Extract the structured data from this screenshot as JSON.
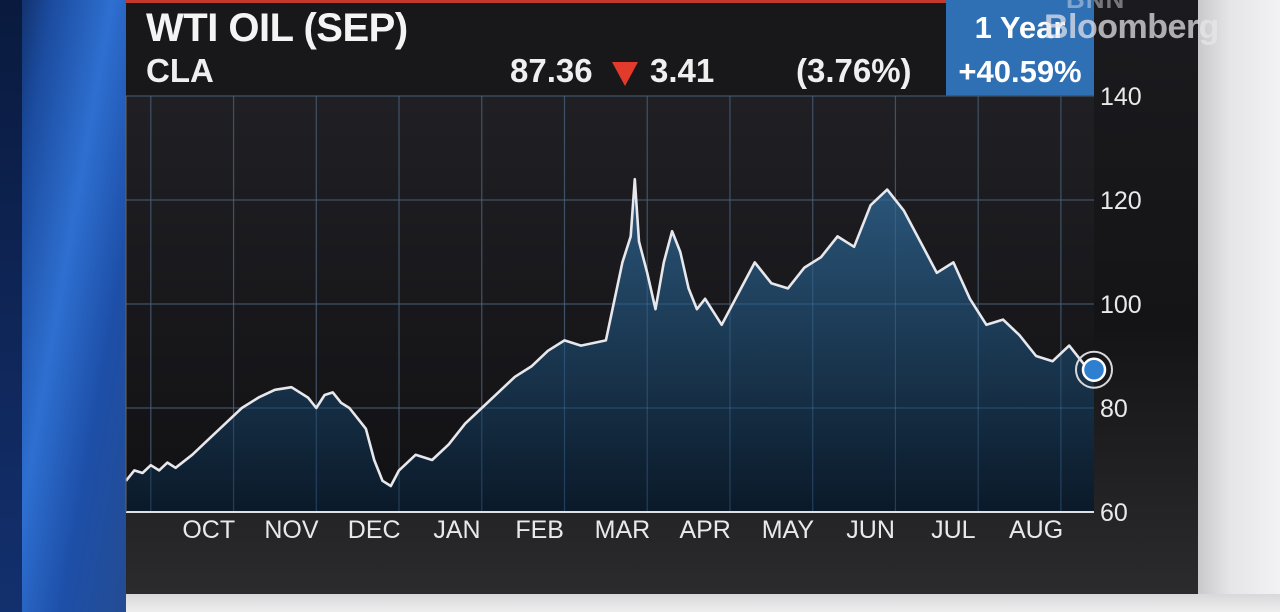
{
  "header": {
    "title": "WTI OIL (SEP)",
    "ticker": "CLA",
    "price": "87.36",
    "change": "3.41",
    "change_pct": "(3.76%)",
    "direction_icon": "down-triangle-icon",
    "period_label": "1 Year",
    "period_change": "+40.59%",
    "brand": "Bloomberg",
    "brand_prefix": "BNN"
  },
  "colors": {
    "line": "#e8e8ec",
    "area_top": "#2c5a80",
    "area_bottom": "#0a1a2a",
    "down": "#e23a2b",
    "period_box": "#2f6fb4",
    "marker": "#2f7fd0"
  },
  "chart_data": {
    "type": "area",
    "title": "WTI OIL (SEP)",
    "xlabel": "",
    "ylabel": "",
    "ylim": [
      60,
      140
    ],
    "yticks": [
      60,
      80,
      100,
      120,
      140
    ],
    "y_axis_position": "right",
    "grid": true,
    "legend": "none",
    "x_tick_labels": [
      "OCT",
      "NOV",
      "DEC",
      "JAN",
      "FEB",
      "MAR",
      "APR",
      "MAY",
      "JUN",
      "JUL",
      "AUG"
    ],
    "x_tick_months": [
      1,
      2,
      3,
      4,
      5,
      6,
      7,
      8,
      9,
      10,
      11
    ],
    "x_range_months": [
      0,
      11.7
    ],
    "last_value": 87.36,
    "series": [
      {
        "x": [
          0,
          0.1,
          0.2,
          0.3,
          0.4,
          0.5,
          0.6,
          0.8,
          1.0,
          1.2,
          1.4,
          1.6,
          1.8,
          2.0,
          2.2,
          2.3,
          2.4,
          2.5,
          2.6,
          2.7,
          2.8,
          2.9,
          3.0,
          3.1,
          3.2,
          3.3,
          3.5,
          3.7,
          3.9,
          4.1,
          4.3,
          4.5,
          4.7,
          4.9,
          5.1,
          5.3,
          5.5,
          5.8,
          6.0,
          6.1,
          6.15,
          6.2,
          6.3,
          6.4,
          6.5,
          6.6,
          6.7,
          6.8,
          6.9,
          7.0,
          7.2,
          7.4,
          7.6,
          7.8,
          8.0,
          8.2,
          8.4,
          8.6,
          8.8,
          9.0,
          9.2,
          9.4,
          9.6,
          9.8,
          10.0,
          10.2,
          10.4,
          10.6,
          10.8,
          11.0,
          11.2,
          11.4,
          11.6,
          11.7
        ],
        "y": [
          66,
          68,
          67.5,
          69,
          68,
          69.5,
          68.5,
          71,
          74,
          77,
          80,
          82,
          83.5,
          84,
          82,
          80,
          82.5,
          83,
          81,
          80,
          78,
          76,
          70,
          66,
          65,
          68,
          71,
          70,
          73,
          77,
          80,
          83,
          86,
          88,
          91,
          93,
          92,
          93,
          108,
          113,
          124,
          112,
          106,
          99,
          108,
          114,
          110,
          103,
          99,
          101,
          96,
          102,
          108,
          104,
          103,
          107,
          109,
          113,
          111,
          119,
          122,
          118,
          112,
          106,
          108,
          101,
          96,
          97,
          94,
          90,
          89,
          92,
          88,
          87.36
        ]
      }
    ]
  }
}
